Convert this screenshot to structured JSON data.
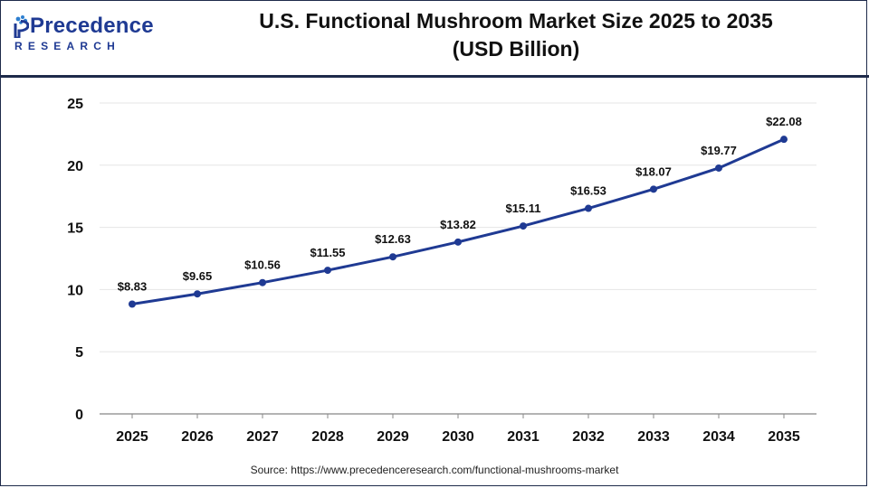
{
  "brand": {
    "name": "Precedence",
    "tagline": "RESEARCH",
    "color": "#1f3a93",
    "accent": "#2d7fd0"
  },
  "title": {
    "line1": "U.S. Functional Mushroom Market Size 2025 to 2035",
    "line2": "(USD Billion)"
  },
  "source": "Source: https://www.precedenceresearch.com/functional-mushrooms-market",
  "chart_data": {
    "type": "line",
    "categories": [
      "2025",
      "2026",
      "2027",
      "2028",
      "2029",
      "2030",
      "2031",
      "2032",
      "2033",
      "2034",
      "2035"
    ],
    "series": [
      {
        "values": [
          8.83,
          9.65,
          10.56,
          11.55,
          12.63,
          13.82,
          15.11,
          16.53,
          18.07,
          19.77,
          22.08
        ],
        "labels": [
          "$8.83",
          "$9.65",
          "$10.56",
          "$11.55",
          "$12.63",
          "$13.82",
          "$15.11",
          "$16.53",
          "$18.07",
          "$19.77",
          "$22.08"
        ],
        "color": "#1f3a93"
      }
    ],
    "ylim": [
      0,
      25
    ],
    "yticks": [
      "0",
      "5",
      "10",
      "15",
      "20",
      "25"
    ],
    "grid": true,
    "gridColor": "#e6e6e6",
    "axisColor": "#888888"
  }
}
